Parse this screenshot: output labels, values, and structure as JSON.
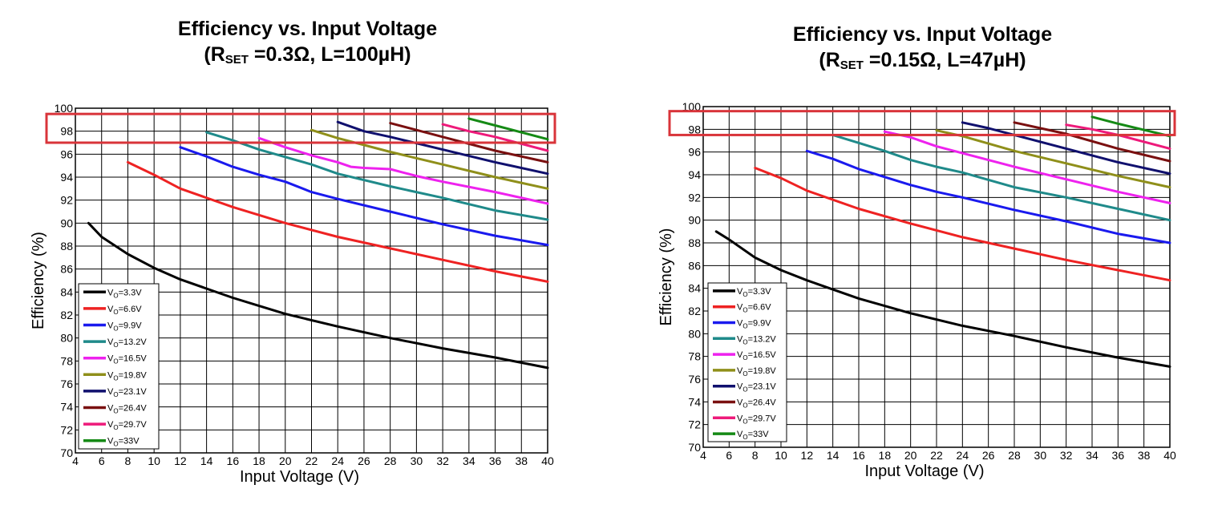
{
  "charts": [
    {
      "title_line1": "Efficiency vs. Input Voltage",
      "title_prefix": "(R",
      "title_sub": "SET",
      "title_suffix": " =0.3Ω, L=100µH)"
    },
    {
      "title_line1": "Efficiency vs. Input Voltage",
      "title_prefix": "(R",
      "title_sub": "SET",
      "title_suffix": " =0.15Ω, L=47µH)"
    }
  ],
  "chart_data": [
    {
      "type": "line",
      "title": "Efficiency vs. Input Voltage (RSET =0.3Ω, L=100µH)",
      "xlabel": "Input Voltage (V)",
      "ylabel": "Efficiency (%)",
      "xlim": [
        4,
        40
      ],
      "ylim": [
        70,
        100
      ],
      "xticks": [
        4,
        6,
        8,
        10,
        12,
        14,
        16,
        18,
        20,
        22,
        24,
        26,
        28,
        30,
        32,
        34,
        36,
        38,
        40
      ],
      "yticks": [
        70,
        72,
        74,
        76,
        78,
        80,
        82,
        84,
        86,
        88,
        90,
        92,
        94,
        96,
        98,
        100
      ],
      "grid": true,
      "legend_position": "bottom-left",
      "highlight_box": {
        "y_range": [
          97,
          99.5
        ],
        "color": "#d9343a"
      },
      "series": [
        {
          "legend_main": "V",
          "legend_sub": "O",
          "legend_rest": "=3.3V",
          "color": "#000000",
          "points": [
            [
              5,
              90
            ],
            [
              6,
              88.8
            ],
            [
              8,
              87.3
            ],
            [
              10,
              86.1
            ],
            [
              12,
              85.1
            ],
            [
              16,
              83.5
            ],
            [
              20,
              82.1
            ],
            [
              24,
              81.0
            ],
            [
              28,
              80.0
            ],
            [
              32,
              79.1
            ],
            [
              36,
              78.3
            ],
            [
              40,
              77.4
            ]
          ]
        },
        {
          "legend_main": "V",
          "legend_sub": "O",
          "legend_rest": "=6.6V",
          "color": "#ee2222",
          "points": [
            [
              8,
              95.3
            ],
            [
              10,
              94.2
            ],
            [
              12,
              93.0
            ],
            [
              16,
              91.4
            ],
            [
              20,
              90.0
            ],
            [
              24,
              88.8
            ],
            [
              28,
              87.8
            ],
            [
              32,
              86.8
            ],
            [
              36,
              85.8
            ],
            [
              40,
              84.9
            ]
          ]
        },
        {
          "legend_main": "V",
          "legend_sub": "O",
          "legend_rest": "=9.9V",
          "color": "#1a1aee",
          "points": [
            [
              12,
              96.6
            ],
            [
              14,
              95.8
            ],
            [
              16,
              94.9
            ],
            [
              18,
              94.2
            ],
            [
              20,
              93.6
            ],
            [
              22,
              92.7
            ],
            [
              24,
              92.1
            ],
            [
              28,
              91.0
            ],
            [
              32,
              89.9
            ],
            [
              36,
              88.9
            ],
            [
              40,
              88.1
            ]
          ]
        },
        {
          "legend_main": "V",
          "legend_sub": "O",
          "legend_rest": "=13.2V",
          "color": "#1f8a8a",
          "points": [
            [
              14,
              97.9
            ],
            [
              16,
              97.2
            ],
            [
              18,
              96.4
            ],
            [
              22,
              95.1
            ],
            [
              24,
              94.3
            ],
            [
              28,
              93.2
            ],
            [
              32,
              92.2
            ],
            [
              36,
              91.1
            ],
            [
              40,
              90.3
            ]
          ]
        },
        {
          "legend_main": "V",
          "legend_sub": "O",
          "legend_rest": "=16.5V",
          "color": "#ee22ee",
          "points": [
            [
              18,
              97.4
            ],
            [
              20,
              96.6
            ],
            [
              22,
              95.9
            ],
            [
              24,
              95.3
            ],
            [
              25,
              94.9
            ],
            [
              26,
              94.8
            ],
            [
              28,
              94.7
            ],
            [
              30,
              94.1
            ],
            [
              32,
              93.6
            ],
            [
              36,
              92.7
            ],
            [
              40,
              91.7
            ]
          ]
        },
        {
          "legend_main": "V",
          "legend_sub": "O",
          "legend_rest": "=19.8V",
          "color": "#8f8f1a",
          "points": [
            [
              22,
              98.1
            ],
            [
              24,
              97.4
            ],
            [
              28,
              96.2
            ],
            [
              32,
              95.1
            ],
            [
              36,
              94.0
            ],
            [
              40,
              93.0
            ]
          ]
        },
        {
          "legend_main": "V",
          "legend_sub": "O",
          "legend_rest": "=23.1V",
          "color": "#10106e",
          "points": [
            [
              24,
              98.8
            ],
            [
              26,
              98.0
            ],
            [
              28,
              97.5
            ],
            [
              32,
              96.4
            ],
            [
              36,
              95.3
            ],
            [
              40,
              94.3
            ]
          ]
        },
        {
          "legend_main": "V",
          "legend_sub": "O",
          "legend_rest": "=26.4V",
          "color": "#7a1010",
          "points": [
            [
              28,
              98.7
            ],
            [
              30,
              98.1
            ],
            [
              32,
              97.5
            ],
            [
              36,
              96.3
            ],
            [
              40,
              95.3
            ]
          ]
        },
        {
          "legend_main": "V",
          "legend_sub": "O",
          "legend_rest": "=29.7V",
          "color": "#ee1a7a",
          "points": [
            [
              32,
              98.6
            ],
            [
              34,
              98.0
            ],
            [
              36,
              97.5
            ],
            [
              40,
              96.3
            ]
          ]
        },
        {
          "legend_main": "V",
          "legend_sub": "O",
          "legend_rest": "=33V",
          "color": "#158a15",
          "points": [
            [
              34,
              99.1
            ],
            [
              36,
              98.5
            ],
            [
              40,
              97.3
            ]
          ]
        }
      ]
    },
    {
      "type": "line",
      "title": "Efficiency vs. Input Voltage (RSET =0.15Ω, L=47µH)",
      "xlabel": "Input Voltage (V)",
      "ylabel": "Efficiency (%)",
      "xlim": [
        4,
        40
      ],
      "ylim": [
        70,
        100
      ],
      "xticks": [
        4,
        6,
        8,
        10,
        12,
        14,
        16,
        18,
        20,
        22,
        24,
        26,
        28,
        30,
        32,
        34,
        36,
        38,
        40
      ],
      "yticks": [
        70,
        72,
        74,
        76,
        78,
        80,
        82,
        84,
        86,
        88,
        90,
        92,
        94,
        96,
        98,
        100
      ],
      "grid": true,
      "legend_position": "bottom-left",
      "highlight_box": {
        "y_range": [
          97.5,
          99.6
        ],
        "color": "#d9343a"
      },
      "series": [
        {
          "legend_main": "V",
          "legend_sub": "O",
          "legend_rest": "=3.3V",
          "color": "#000000",
          "points": [
            [
              5,
              89
            ],
            [
              6,
              88.3
            ],
            [
              8,
              86.7
            ],
            [
              10,
              85.6
            ],
            [
              12,
              84.7
            ],
            [
              16,
              83.1
            ],
            [
              20,
              81.8
            ],
            [
              24,
              80.7
            ],
            [
              28,
              79.8
            ],
            [
              32,
              78.8
            ],
            [
              36,
              77.9
            ],
            [
              40,
              77.1
            ]
          ]
        },
        {
          "legend_main": "V",
          "legend_sub": "O",
          "legend_rest": "=6.6V",
          "color": "#ee2222",
          "points": [
            [
              8,
              94.6
            ],
            [
              10,
              93.7
            ],
            [
              12,
              92.6
            ],
            [
              16,
              91.0
            ],
            [
              20,
              89.7
            ],
            [
              24,
              88.5
            ],
            [
              28,
              87.5
            ],
            [
              32,
              86.5
            ],
            [
              36,
              85.6
            ],
            [
              40,
              84.7
            ]
          ]
        },
        {
          "legend_main": "V",
          "legend_sub": "O",
          "legend_rest": "=9.9V",
          "color": "#1a1aee",
          "points": [
            [
              12,
              96.1
            ],
            [
              14,
              95.4
            ],
            [
              16,
              94.5
            ],
            [
              18,
              93.8
            ],
            [
              20,
              93.1
            ],
            [
              22,
              92.5
            ],
            [
              24,
              92.0
            ],
            [
              28,
              90.9
            ],
            [
              32,
              89.9
            ],
            [
              36,
              88.8
            ],
            [
              40,
              88.0
            ]
          ]
        },
        {
          "legend_main": "V",
          "legend_sub": "O",
          "legend_rest": "=13.2V",
          "color": "#1f8a8a",
          "points": [
            [
              14,
              97.5
            ],
            [
              16,
              96.8
            ],
            [
              18,
              96.1
            ],
            [
              20,
              95.3
            ],
            [
              22,
              94.7
            ],
            [
              24,
              94.2
            ],
            [
              28,
              92.9
            ],
            [
              32,
              92.0
            ],
            [
              36,
              91.0
            ],
            [
              40,
              90.0
            ]
          ]
        },
        {
          "legend_main": "V",
          "legend_sub": "O",
          "legend_rest": "=16.5V",
          "color": "#ee22ee",
          "points": [
            [
              18,
              97.8
            ],
            [
              20,
              97.3
            ],
            [
              22,
              96.5
            ],
            [
              24,
              95.9
            ],
            [
              28,
              94.7
            ],
            [
              32,
              93.6
            ],
            [
              36,
              92.5
            ],
            [
              40,
              91.5
            ]
          ]
        },
        {
          "legend_main": "V",
          "legend_sub": "O",
          "legend_rest": "=19.8V",
          "color": "#8f8f1a",
          "points": [
            [
              22,
              97.9
            ],
            [
              24,
              97.4
            ],
            [
              28,
              96.1
            ],
            [
              32,
              95.0
            ],
            [
              36,
              93.9
            ],
            [
              40,
              92.9
            ]
          ]
        },
        {
          "legend_main": "V",
          "legend_sub": "O",
          "legend_rest": "=23.1V",
          "color": "#10106e",
          "points": [
            [
              24,
              98.6
            ],
            [
              26,
              98.1
            ],
            [
              28,
              97.5
            ],
            [
              32,
              96.3
            ],
            [
              36,
              95.1
            ],
            [
              40,
              94.1
            ]
          ]
        },
        {
          "legend_main": "V",
          "legend_sub": "O",
          "legend_rest": "=26.4V",
          "color": "#7a1010",
          "points": [
            [
              28,
              98.6
            ],
            [
              30,
              98.1
            ],
            [
              32,
              97.6
            ],
            [
              36,
              96.3
            ],
            [
              40,
              95.2
            ]
          ]
        },
        {
          "legend_main": "V",
          "legend_sub": "O",
          "legend_rest": "=29.7V",
          "color": "#ee1a7a",
          "points": [
            [
              32,
              98.4
            ],
            [
              34,
              98.0
            ],
            [
              36,
              97.5
            ],
            [
              40,
              96.3
            ]
          ]
        },
        {
          "legend_main": "V",
          "legend_sub": "O",
          "legend_rest": "=33V",
          "color": "#158a15",
          "points": [
            [
              34,
              99.1
            ],
            [
              36,
              98.5
            ],
            [
              40,
              97.4
            ]
          ]
        }
      ]
    }
  ]
}
